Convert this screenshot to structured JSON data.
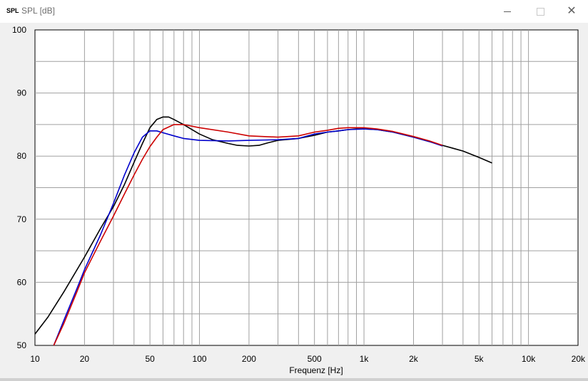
{
  "window": {
    "icon_text": "SPL",
    "title": "SPL [dB]"
  },
  "chart_data": {
    "type": "line",
    "title": "",
    "xlabel": "Frequenz [Hz]",
    "ylabel": "",
    "xscale": "log",
    "xlim": [
      10,
      20000
    ],
    "ylim": [
      50,
      100
    ],
    "grid": true,
    "x_ticks": [
      {
        "value": 10,
        "label": "10"
      },
      {
        "value": 20,
        "label": "20"
      },
      {
        "value": 50,
        "label": "50"
      },
      {
        "value": 100,
        "label": "100"
      },
      {
        "value": 200,
        "label": "200"
      },
      {
        "value": 500,
        "label": "500"
      },
      {
        "value": 1000,
        "label": "1k"
      },
      {
        "value": 2000,
        "label": "2k"
      },
      {
        "value": 5000,
        "label": "5k"
      },
      {
        "value": 10000,
        "label": "10k"
      },
      {
        "value": 20000,
        "label": "20k"
      }
    ],
    "y_ticks": [
      {
        "value": 50,
        "label": "50"
      },
      {
        "value": 60,
        "label": "60"
      },
      {
        "value": 70,
        "label": "70"
      },
      {
        "value": 80,
        "label": "80"
      },
      {
        "value": 90,
        "label": "90"
      },
      {
        "value": 100,
        "label": "100"
      }
    ],
    "series": [
      {
        "color": "#000000",
        "points": [
          [
            10,
            51.8
          ],
          [
            12,
            54.5
          ],
          [
            15,
            58.5
          ],
          [
            20,
            64.0
          ],
          [
            25,
            68.5
          ],
          [
            30,
            72.0
          ],
          [
            35,
            75.5
          ],
          [
            40,
            79.0
          ],
          [
            45,
            82.0
          ],
          [
            50,
            84.5
          ],
          [
            55,
            85.8
          ],
          [
            60,
            86.2
          ],
          [
            65,
            86.2
          ],
          [
            70,
            85.8
          ],
          [
            80,
            85.0
          ],
          [
            100,
            83.5
          ],
          [
            120,
            82.6
          ],
          [
            150,
            82.0
          ],
          [
            170,
            81.7
          ],
          [
            200,
            81.6
          ],
          [
            230,
            81.7
          ],
          [
            260,
            82.1
          ],
          [
            300,
            82.5
          ],
          [
            400,
            82.8
          ],
          [
            500,
            83.3
          ],
          [
            600,
            83.8
          ],
          [
            700,
            84.0
          ],
          [
            800,
            84.2
          ],
          [
            900,
            84.3
          ],
          [
            1000,
            84.3
          ],
          [
            1200,
            84.2
          ],
          [
            1500,
            83.8
          ],
          [
            2000,
            83.0
          ],
          [
            2500,
            82.3
          ],
          [
            3000,
            81.7
          ],
          [
            4000,
            80.8
          ],
          [
            5000,
            79.8
          ],
          [
            6000,
            78.9
          ]
        ]
      },
      {
        "color": "#0000cc",
        "points": [
          [
            13,
            50.0
          ],
          [
            15,
            54.0
          ],
          [
            18,
            59.0
          ],
          [
            20,
            62.0
          ],
          [
            25,
            67.5
          ],
          [
            30,
            72.5
          ],
          [
            35,
            77.0
          ],
          [
            40,
            80.5
          ],
          [
            45,
            83.0
          ],
          [
            50,
            84.0
          ],
          [
            55,
            84.0
          ],
          [
            60,
            83.7
          ],
          [
            70,
            83.2
          ],
          [
            80,
            82.8
          ],
          [
            100,
            82.5
          ],
          [
            150,
            82.4
          ],
          [
            200,
            82.5
          ],
          [
            300,
            82.6
          ],
          [
            400,
            82.8
          ],
          [
            500,
            83.5
          ],
          [
            600,
            83.8
          ],
          [
            700,
            84.0
          ],
          [
            800,
            84.2
          ],
          [
            1000,
            84.3
          ],
          [
            1200,
            84.2
          ],
          [
            1500,
            83.8
          ],
          [
            2000,
            83.0
          ],
          [
            2500,
            82.3
          ],
          [
            3000,
            81.6
          ]
        ]
      },
      {
        "color": "#cc0000",
        "points": [
          [
            13,
            50.0
          ],
          [
            15,
            53.5
          ],
          [
            18,
            58.5
          ],
          [
            20,
            61.5
          ],
          [
            25,
            66.5
          ],
          [
            30,
            70.5
          ],
          [
            35,
            74.0
          ],
          [
            40,
            77.0
          ],
          [
            45,
            79.5
          ],
          [
            50,
            81.5
          ],
          [
            55,
            83.0
          ],
          [
            60,
            84.2
          ],
          [
            70,
            85.0
          ],
          [
            80,
            85.0
          ],
          [
            100,
            84.5
          ],
          [
            150,
            83.8
          ],
          [
            200,
            83.2
          ],
          [
            300,
            83.0
          ],
          [
            400,
            83.2
          ],
          [
            500,
            83.8
          ],
          [
            600,
            84.1
          ],
          [
            700,
            84.4
          ],
          [
            800,
            84.5
          ],
          [
            1000,
            84.5
          ],
          [
            1200,
            84.3
          ],
          [
            1500,
            83.9
          ],
          [
            2000,
            83.1
          ],
          [
            2500,
            82.4
          ],
          [
            3000,
            81.7
          ]
        ]
      }
    ]
  }
}
